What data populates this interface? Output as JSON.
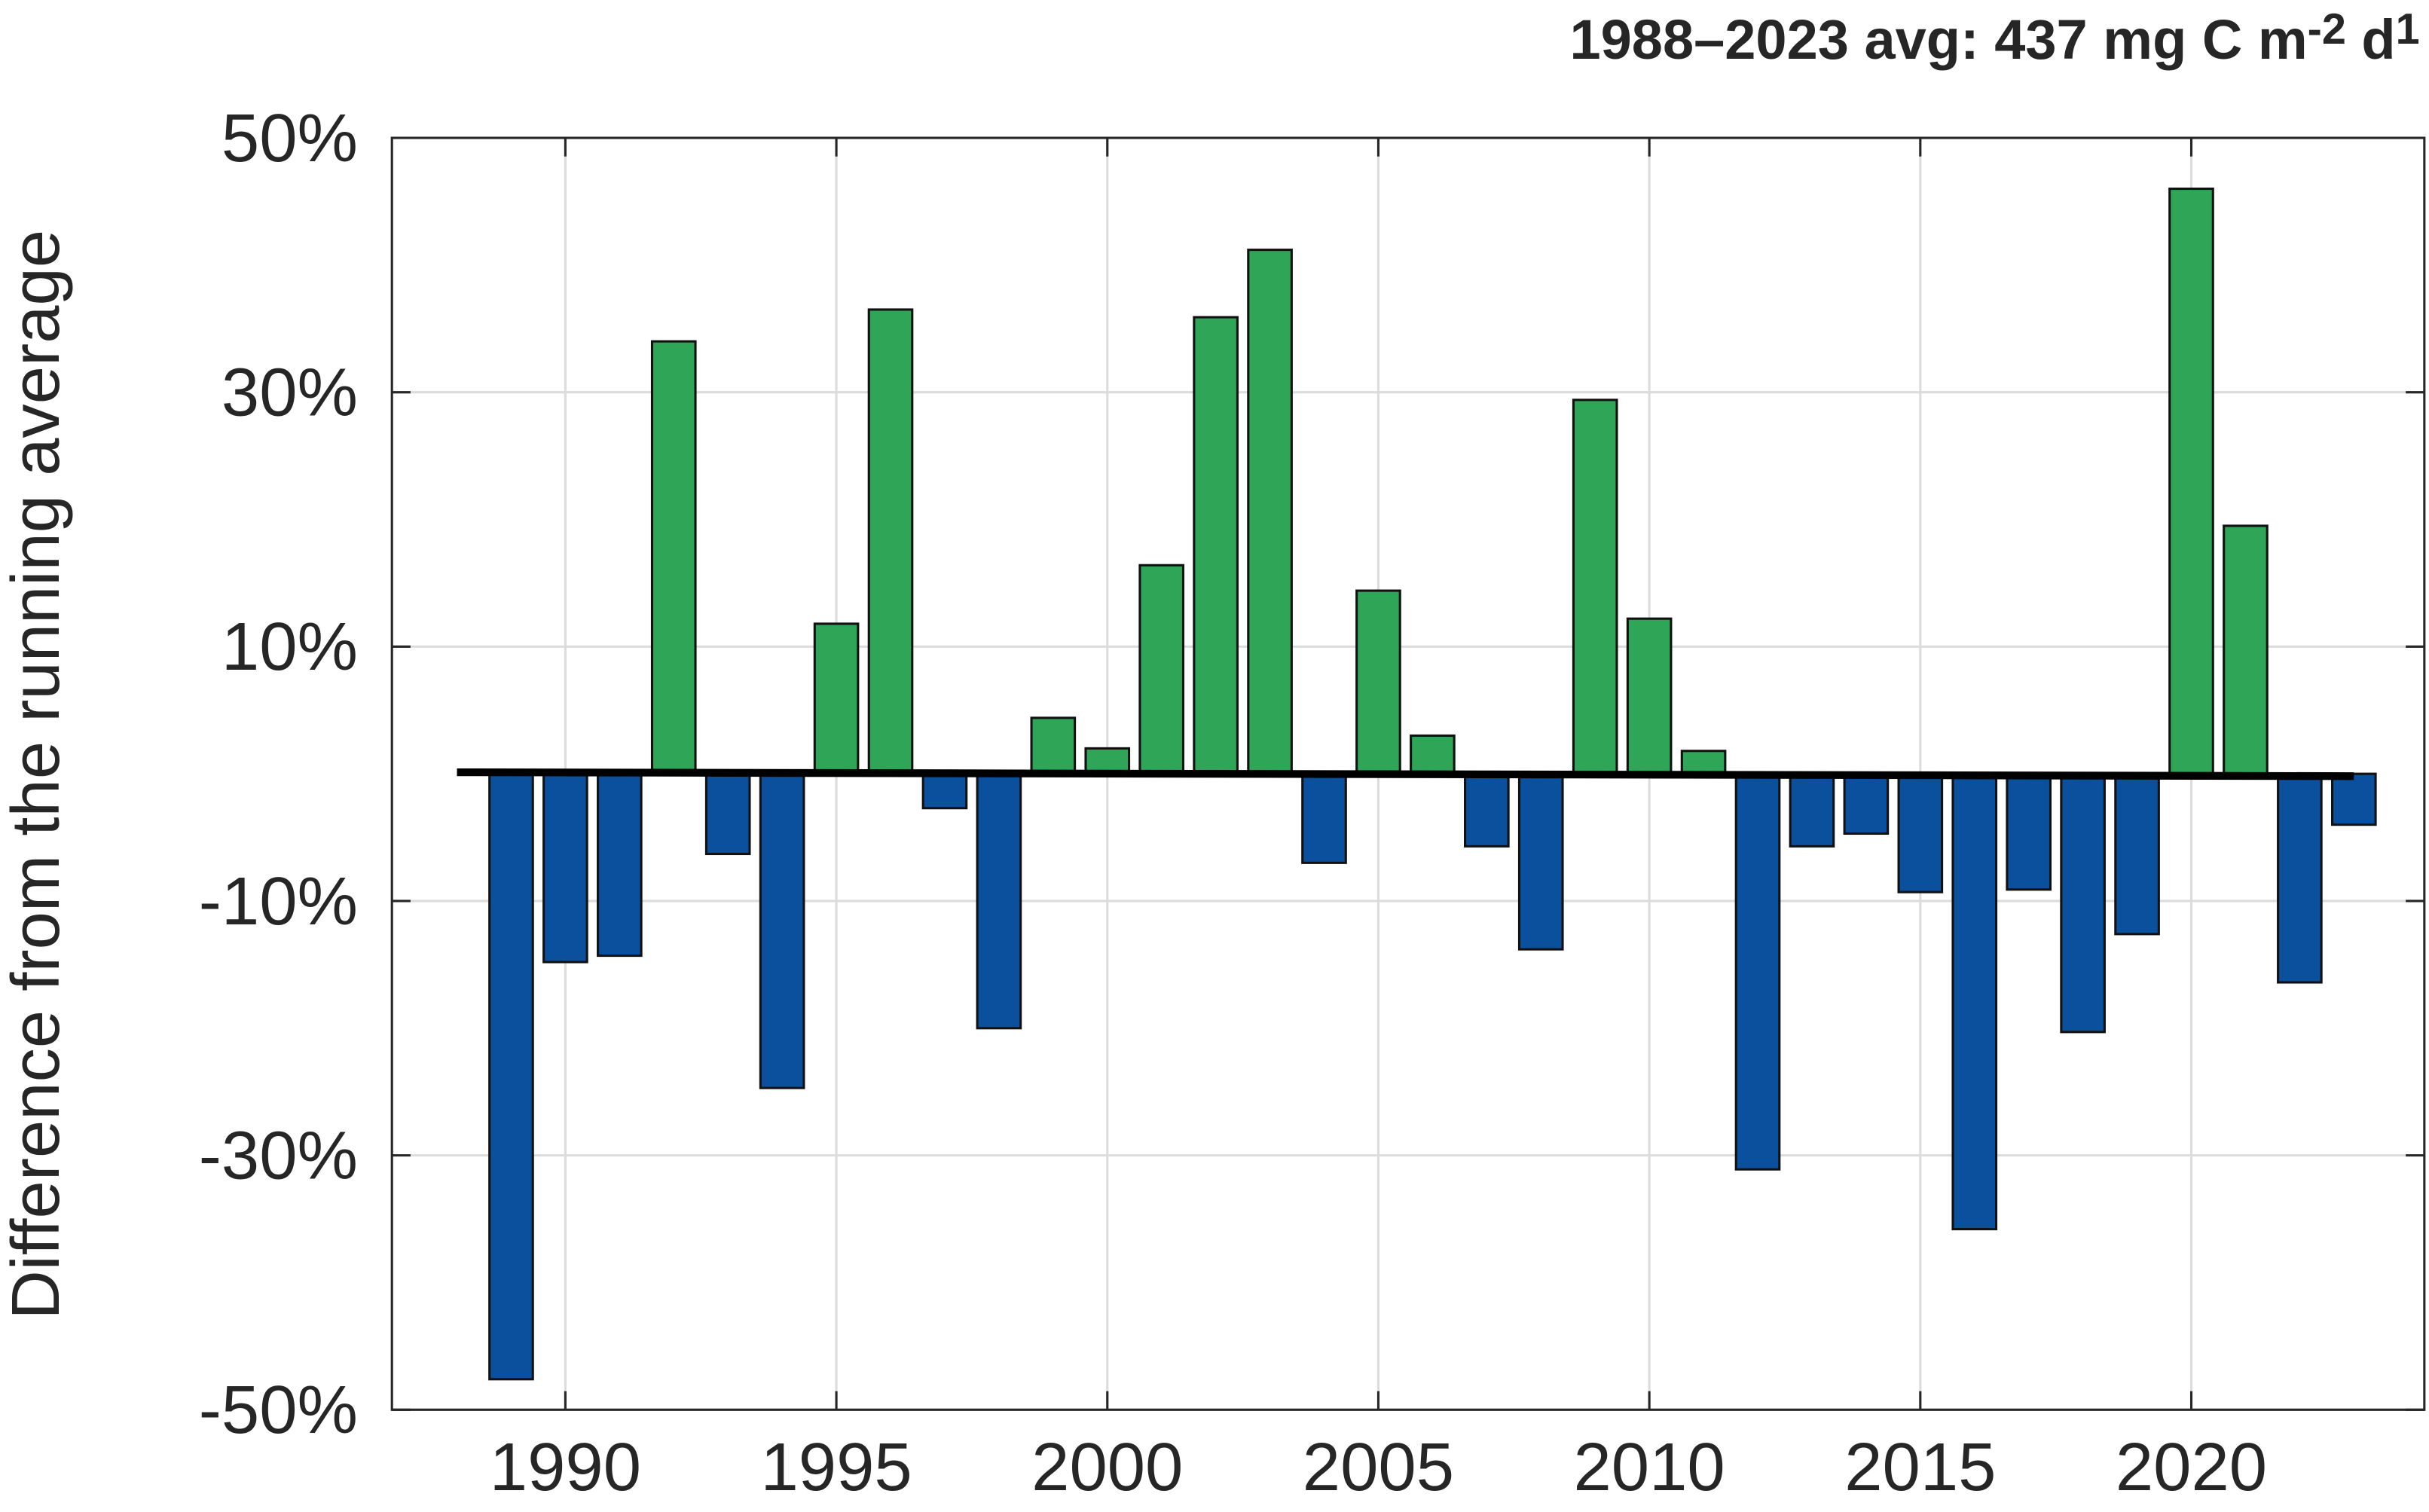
{
  "chart_data": {
    "type": "bar",
    "title_parts": [
      "1988–2023 avg: 437 mg C m",
      "-2",
      " d",
      "1"
    ],
    "ylabel": "Difference from the running average",
    "x": [
      1989,
      1990,
      1991,
      1992,
      1993,
      1994,
      1995,
      1996,
      1997,
      1998,
      1999,
      2000,
      2001,
      2002,
      2003,
      2004,
      2005,
      2006,
      2007,
      2008,
      2009,
      2010,
      2011,
      2012,
      2013,
      2014,
      2015,
      2016,
      2017,
      2018,
      2019,
      2020,
      2021,
      2022,
      2023
    ],
    "values": [
      -47.6,
      -14.8,
      -14.3,
      34.0,
      -6.3,
      -24.7,
      11.8,
      36.5,
      -2.7,
      -20.0,
      4.4,
      2.0,
      16.4,
      35.9,
      41.2,
      -7.0,
      14.4,
      3.0,
      -5.7,
      -13.8,
      29.4,
      12.2,
      1.8,
      -31.1,
      -5.7,
      -4.7,
      -9.3,
      -35.8,
      -9.1,
      -20.3,
      -12.6,
      46.0,
      19.5,
      -16.4,
      -4.0
    ],
    "colors": {
      "positive": "#2fa557",
      "negative": "#0b509c"
    },
    "xlim": [
      1986.8,
      2024.3
    ],
    "xticks": [
      1990,
      1995,
      2000,
      2005,
      2010,
      2015,
      2020
    ],
    "ylim": [
      -50,
      50
    ],
    "yticks": [
      {
        "value": -50,
        "label": "-50%"
      },
      {
        "value": -30,
        "label": "-30%"
      },
      {
        "value": -10,
        "label": "-10%"
      },
      {
        "value": 10,
        "label": "10%"
      },
      {
        "value": 30,
        "label": "30%"
      },
      {
        "value": 50,
        "label": "50%"
      }
    ],
    "grid": true
  }
}
